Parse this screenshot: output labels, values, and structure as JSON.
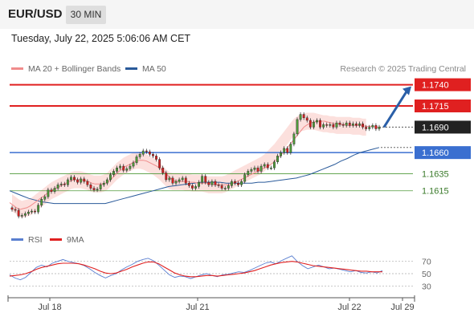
{
  "header": {
    "pair": "EUR/USD",
    "timeframe": "30 MIN"
  },
  "datetime": "Tuesday, July 22, 2025 5:06:06 AM CET",
  "legend": {
    "ma20": {
      "label": "MA 20 + Bollinger Bands",
      "color": "#f08c8c"
    },
    "ma50": {
      "label": "MA 50",
      "color": "#2a5a9a"
    }
  },
  "copyright": "Research © 2025 Trading Central",
  "rsi_legend": {
    "rsi": {
      "label": "RSI",
      "color": "#5a7fd0"
    },
    "ma9": {
      "label": "9MA",
      "color": "#e02020"
    }
  },
  "chart_data": [
    {
      "type": "candlestick",
      "ylim": [
        1.1575,
        1.175
      ],
      "x_tick_labels": [
        "Jul 18",
        "Jul 21",
        "Jul 22",
        "Jul 29"
      ],
      "last_price": 1.169,
      "levels": [
        {
          "price": 1.174,
          "label": "1.1740",
          "kind": "resistance",
          "color": "#e02020"
        },
        {
          "price": 1.1715,
          "label": "1.1715",
          "kind": "resistance",
          "color": "#e02020"
        },
        {
          "price": 1.169,
          "label": "1.1690",
          "kind": "last",
          "color": "#222222"
        },
        {
          "price": 1.166,
          "label": "1.1660",
          "kind": "pivot",
          "color": "#3a6fd0"
        },
        {
          "price": 1.1635,
          "label": "1.1635",
          "kind": "support",
          "color": "#4f9a3a"
        },
        {
          "price": 1.1615,
          "label": "1.1615",
          "kind": "support",
          "color": "#4f9a3a"
        }
      ],
      "projection": {
        "from": 1.169,
        "to": 1.174,
        "direction": "up"
      },
      "series": [
        {
          "name": "Price",
          "values": [
            1.1593,
            1.1592,
            1.1585,
            1.1586,
            1.1588,
            1.159,
            1.1591,
            1.159,
            1.1598,
            1.1605,
            1.1608,
            1.1616,
            1.1614,
            1.1618,
            1.1622,
            1.1623,
            1.1622,
            1.1628,
            1.1631,
            1.1628,
            1.1625,
            1.1629,
            1.1626,
            1.1622,
            1.1618,
            1.1616,
            1.1617,
            1.1622,
            1.1624,
            1.1628,
            1.1634,
            1.1638,
            1.1642,
            1.1644,
            1.1639,
            1.1641,
            1.1644,
            1.1648,
            1.1655,
            1.1658,
            1.1662,
            1.1661,
            1.1658,
            1.1656,
            1.1652,
            1.1642,
            1.1636,
            1.1628,
            1.163,
            1.1624,
            1.1626,
            1.1628,
            1.163,
            1.1624,
            1.1621,
            1.1618,
            1.162,
            1.1625,
            1.1632,
            1.1625,
            1.1622,
            1.1626,
            1.1622,
            1.1621,
            1.1618,
            1.1618,
            1.1621,
            1.1626,
            1.1624,
            1.1622,
            1.1626,
            1.1634,
            1.1638,
            1.164,
            1.1642,
            1.1638,
            1.1644,
            1.1646,
            1.1642,
            1.1642,
            1.1649,
            1.1656,
            1.166,
            1.1665,
            1.166,
            1.167,
            1.1682,
            1.1699,
            1.1705,
            1.1701,
            1.1698,
            1.169,
            1.1696,
            1.1698,
            1.169,
            1.1693,
            1.1692,
            1.1693,
            1.169,
            1.1695,
            1.1693,
            1.1692,
            1.1695,
            1.1692,
            1.1694,
            1.1692,
            1.1694,
            1.169,
            1.1688,
            1.169,
            1.1692,
            1.1688,
            1.169
          ]
        },
        {
          "name": "MA 20",
          "values": [
            1.1601,
            1.1598,
            1.1595,
            1.1593,
            1.1594,
            1.1595,
            1.1597,
            1.16,
            1.1603,
            1.1606,
            1.1609,
            1.1612,
            1.1615,
            1.1617,
            1.1619,
            1.1621,
            1.1623,
            1.1625,
            1.1627,
            1.1628,
            1.1628,
            1.1628,
            1.1627,
            1.1626,
            1.1624,
            1.1623,
            1.1623,
            1.1623,
            1.1624,
            1.1626,
            1.163,
            1.1634,
            1.1638,
            1.1641,
            1.1644,
            1.1646,
            1.1648,
            1.165,
            1.1651,
            1.1651,
            1.165,
            1.1648,
            1.1646,
            1.1644,
            1.1641,
            1.1638,
            1.1634,
            1.163,
            1.1627,
            1.1626,
            1.1626,
            1.1626,
            1.1626,
            1.1625,
            1.1625,
            1.1624,
            1.1624,
            1.1624,
            1.1624,
            1.1623,
            1.1622,
            1.1622,
            1.1622,
            1.1622,
            1.1622,
            1.1623,
            1.1625,
            1.1627,
            1.1629,
            1.1631,
            1.1633,
            1.1635,
            1.1637,
            1.1639,
            1.1641,
            1.1643,
            1.1645,
            1.1648,
            1.1652,
            1.1656,
            1.166,
            1.1665,
            1.167,
            1.1675,
            1.168,
            1.1685,
            1.169,
            1.1693,
            1.1695,
            1.1696,
            1.1697,
            1.1697,
            1.1697,
            1.1696,
            1.1695,
            1.1694,
            1.1694,
            1.1693,
            1.1693,
            1.1692,
            1.1692,
            1.1692,
            1.1692,
            1.1692,
            1.1691,
            1.1691,
            1.1691,
            1.169,
            1.169
          ]
        },
        {
          "name": "MA 50",
          "values": [
            1.1615,
            1.1612,
            1.1609,
            1.1606,
            1.1604,
            1.1602,
            1.1601,
            1.16,
            1.16,
            1.16,
            1.16,
            1.16,
            1.16,
            1.16,
            1.16,
            1.16,
            1.1602,
            1.1604,
            1.1606,
            1.1608,
            1.161,
            1.1612,
            1.1614,
            1.1616,
            1.1618,
            1.162,
            1.1621,
            1.1622,
            1.1623,
            1.1624,
            1.1625,
            1.1625,
            1.1625,
            1.1625,
            1.1624,
            1.1624,
            1.1624,
            1.1624,
            1.1624,
            1.1625,
            1.1625,
            1.1626,
            1.1627,
            1.1628,
            1.1629,
            1.163,
            1.1632,
            1.1634,
            1.1637,
            1.164,
            1.1643,
            1.1646,
            1.165,
            1.1653,
            1.1657,
            1.166,
            1.1662,
            1.1664,
            1.1666
          ]
        }
      ]
    },
    {
      "type": "line",
      "ylim": [
        20,
        80
      ],
      "y_ticks": [
        30,
        50,
        70
      ],
      "series": [
        {
          "name": "RSI",
          "values": [
            48,
            43,
            40,
            44,
            52,
            60,
            64,
            61,
            67,
            70,
            73,
            70,
            68,
            66,
            63,
            58,
            52,
            47,
            43,
            47,
            50,
            56,
            61,
            65,
            70,
            73,
            75,
            71,
            64,
            56,
            48,
            44,
            46,
            45,
            42,
            45,
            48,
            50,
            47,
            45,
            48,
            49,
            51,
            53,
            52,
            55,
            59,
            63,
            67,
            69,
            66,
            71,
            75,
            79,
            70,
            63,
            58,
            61,
            64,
            61,
            58,
            59,
            57,
            55,
            53,
            55,
            52,
            51,
            53,
            51,
            55
          ]
        },
        {
          "name": "9MA",
          "values": [
            46,
            47,
            48,
            50,
            53,
            57,
            60,
            62,
            64,
            66,
            67,
            67,
            67,
            66,
            64,
            61,
            58,
            54,
            51,
            50,
            51,
            54,
            57,
            61,
            64,
            67,
            69,
            69,
            66,
            61,
            56,
            51,
            48,
            46,
            45,
            45,
            46,
            47,
            47,
            46,
            47,
            48,
            49,
            50,
            51,
            53,
            55,
            58,
            61,
            64,
            66,
            68,
            69,
            70,
            69,
            67,
            65,
            63,
            62,
            61,
            60,
            59,
            58,
            57,
            56,
            55,
            54,
            54,
            53,
            53,
            53
          ]
        }
      ]
    }
  ]
}
